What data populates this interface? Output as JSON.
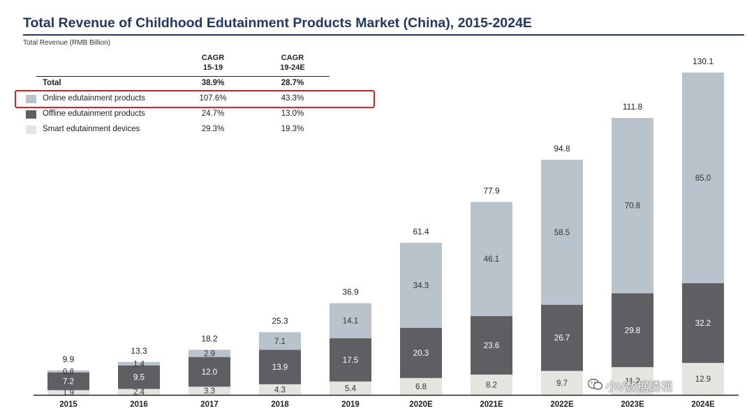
{
  "title": "Total Revenue of Childhood Edutainment Products Market (China), 2015-2024E",
  "subtitle": "Total Revenue (RMB Billion)",
  "cagr_table": {
    "headers": [
      "CAGR\n15-19",
      "CAGR\n19-24E"
    ],
    "total": {
      "label": "Total",
      "cagr_15_19": "38.9%",
      "cagr_19_24": "28.7%"
    },
    "rows": [
      {
        "label": "Online edutainment products",
        "cagr_15_19": "107.6%",
        "cagr_19_24": "43.3%",
        "color": "#b8c3cc"
      },
      {
        "label": "Offline edutainment products",
        "cagr_15_19": "24.7%",
        "cagr_19_24": "13.0%",
        "color": "#5f5f63"
      },
      {
        "label": "Smart edutainment devices",
        "cagr_15_19": "29.3%",
        "cagr_19_24": "19.3%",
        "color": "#e6e4df"
      }
    ]
  },
  "chart_data": {
    "type": "bar",
    "stacked": true,
    "title": "Total Revenue of Childhood Edutainment Products Market (China), 2015-2024E",
    "ylabel": "Total Revenue (RMB Billion)",
    "xlabel": "",
    "ylim": [
      0,
      140
    ],
    "categories": [
      "2015",
      "2016",
      "2017",
      "2018",
      "2019",
      "2020E",
      "2021E",
      "2022E",
      "2023E",
      "2024E"
    ],
    "series": [
      {
        "name": "Smart edutainment devices",
        "color": "#e6e4df",
        "label_color": "#333333",
        "values": [
          1.9,
          2.4,
          3.3,
          4.3,
          5.4,
          6.8,
          8.2,
          9.7,
          11.2,
          12.9
        ],
        "labels": [
          "1.9",
          "2.4",
          "3.3",
          "4.3",
          "5.4",
          "6.8",
          "8.2",
          "9.7",
          "11.2",
          "12.9"
        ]
      },
      {
        "name": "Offline edutainment products",
        "color": "#5f5f63",
        "label_color": "#ffffff",
        "values": [
          7.2,
          9.5,
          12.0,
          13.9,
          17.5,
          20.3,
          23.6,
          26.7,
          29.8,
          32.2
        ],
        "labels": [
          "7.2",
          "9.5",
          "12.0",
          "13.9",
          "17.5",
          "20.3",
          "23.6",
          "26.7",
          "29.8",
          "32.2"
        ]
      },
      {
        "name": "Online edutainment products",
        "color": "#b8c3cc",
        "label_color": "#333333",
        "values": [
          0.8,
          1.4,
          2.9,
          7.1,
          14.1,
          34.3,
          46.1,
          58.5,
          70.8,
          85.0
        ],
        "labels": [
          "0.8",
          "1.4",
          "2.9",
          "7.1",
          "14.1",
          "34.3",
          "46.1",
          "58.5",
          "70.8",
          "85.0"
        ]
      }
    ],
    "totals": [
      "9.9",
      "13.3",
      "18.2",
      "25.3",
      "36.9",
      "61.4",
      "77.9",
      "94.8",
      "111.8",
      "130.1"
    ],
    "total_values": [
      9.9,
      13.3,
      18.2,
      25.3,
      36.9,
      61.4,
      77.9,
      94.8,
      111.8,
      130.1
    ]
  },
  "watermark": {
    "icon": "wechat-icon",
    "text": "小V数据透视"
  }
}
